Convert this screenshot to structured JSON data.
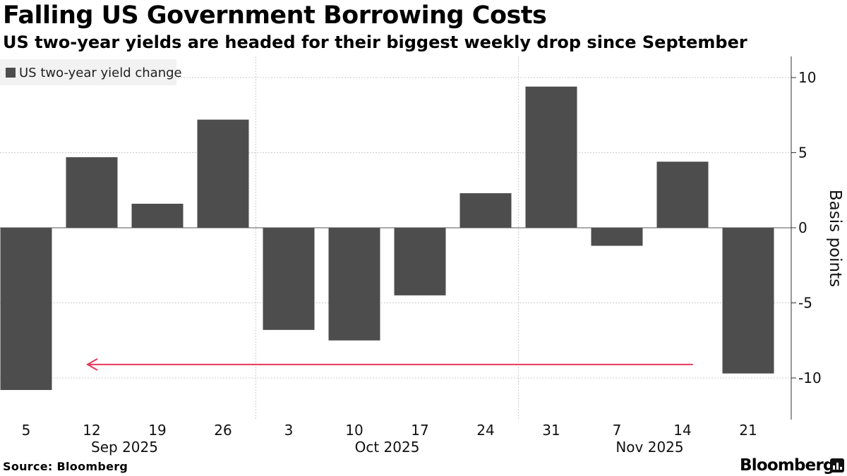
{
  "header": {
    "title": "Falling US Government Borrowing Costs",
    "subtitle": "US two-year yields are headed for their biggest weekly drop since September"
  },
  "footer": {
    "source": "Source: Bloomberg",
    "brand": "Bloomberg"
  },
  "colors": {
    "bar": "#4d4d4d",
    "arrow": "#e8375b",
    "grid": "#cccccc",
    "axis": "#333333"
  },
  "chart_data": {
    "type": "bar",
    "title": "Falling US Government Borrowing Costs",
    "subtitle": "US two-year yields are headed for their biggest weekly drop since September",
    "categories": [
      "5",
      "12",
      "19",
      "26",
      "3",
      "10",
      "17",
      "24",
      "31",
      "7",
      "14",
      "21"
    ],
    "month_labels": [
      {
        "label": "Sep 2025",
        "center_index": 1.5
      },
      {
        "label": "Oct 2025",
        "center_index": 5.5
      },
      {
        "label": "Nov 2025",
        "center_index": 9.5
      }
    ],
    "series": [
      {
        "name": "US two-year yield change",
        "values": [
          -10.8,
          4.7,
          1.6,
          7.2,
          -6.8,
          -7.5,
          -4.5,
          2.3,
          9.4,
          -1.2,
          4.4,
          -9.7
        ]
      }
    ],
    "legend_entries": [
      "US two-year yield change"
    ],
    "ylabel": "Basis points",
    "xlabel": "",
    "ylim": [
      -12.5,
      11.5
    ],
    "yticks": [
      10,
      5,
      0,
      -5,
      -10
    ],
    "ytick_labels": [
      "10",
      "5",
      "0",
      "-5",
      "-10"
    ],
    "yaxis_side": "right",
    "annotation": {
      "type": "arrow",
      "from_index": 10.05,
      "to_index": 1.0,
      "y": -9.1
    }
  }
}
